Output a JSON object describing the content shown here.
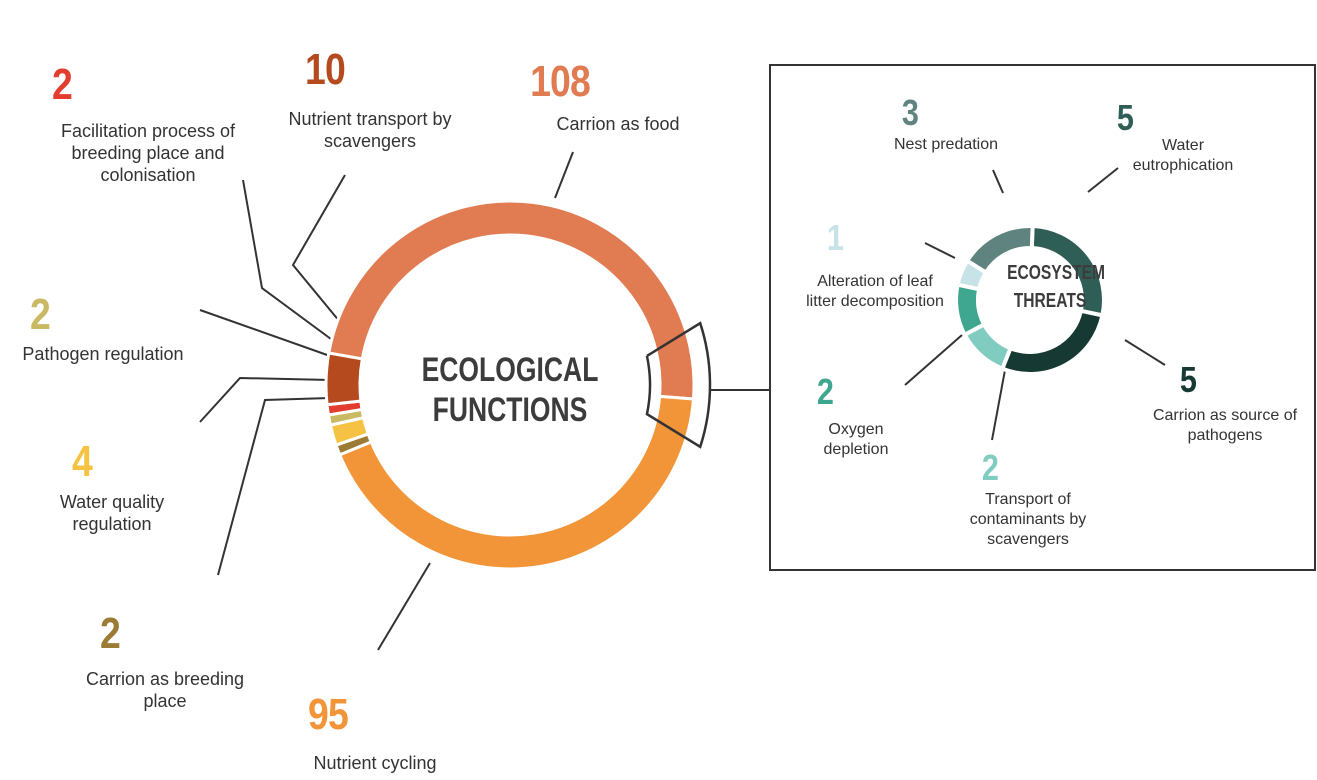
{
  "chart_data": [
    {
      "type": "donut",
      "title": "ECOLOGICAL FUNCTIONS",
      "categories": [
        "Carrion as food",
        "Nutrient cycling",
        "Carrion as breeding place",
        "Water quality regulation",
        "Pathogen regulation",
        "Facilitation process of breeding place and colonisation",
        "Nutrient transport by scavengers"
      ],
      "values": [
        108,
        95,
        2,
        4,
        2,
        2,
        10
      ],
      "colors": [
        "#e07b52",
        "#f19538",
        "#9c7b34",
        "#f6c244",
        "#c9b962",
        "#e23d2f",
        "#b64a1f"
      ]
    },
    {
      "type": "donut",
      "title": "ECOSYSTEM THREATS",
      "categories": [
        "Water eutrophication",
        "Carrion as source of pathogens",
        "Transport of contaminants by scavengers",
        "Oxygen depletion",
        "Alteration of leaf litter decomposition",
        "Nest predation"
      ],
      "values": [
        5,
        5,
        2,
        2,
        1,
        3
      ],
      "colors": [
        "#2f5e56",
        "#163a33",
        "#80ccc0",
        "#3fa68f",
        "#c8e3e8",
        "#5f8480"
      ]
    }
  ]
}
